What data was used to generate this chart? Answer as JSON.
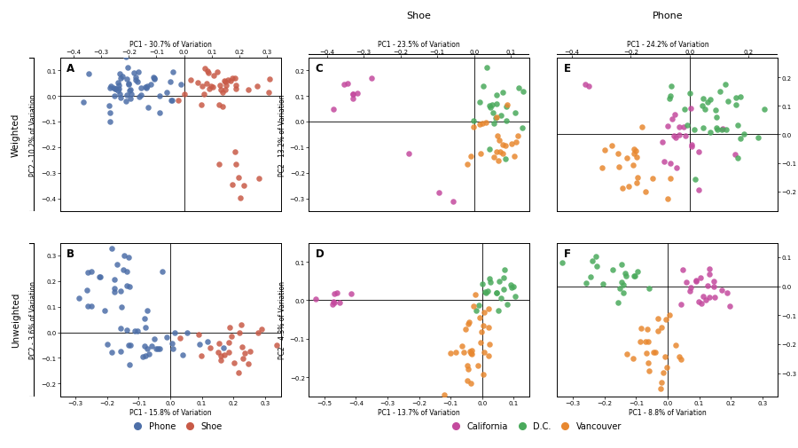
{
  "fig_width": 9.0,
  "fig_height": 5.06,
  "panel_labels": [
    "A",
    "B",
    "C",
    "D",
    "E",
    "F"
  ],
  "col_headers": [
    "Shoe",
    "Phone"
  ],
  "row_labels": [
    "Weighted",
    "Unweighted"
  ],
  "panels": {
    "A": {
      "pc1_label": "PC1 - 30.7% of Variation",
      "pc2_label": "PC2 - 10.2% of Variation",
      "xlim": [
        -0.45,
        0.35
      ],
      "ylim": [
        -0.45,
        0.15
      ],
      "xticks": [
        -0.4,
        -0.3,
        -0.2,
        -0.1,
        0,
        0.1,
        0.2,
        0.3
      ],
      "yticks": [
        -0.4,
        -0.3,
        -0.2,
        -0.1,
        0,
        0.1
      ],
      "top_axis": true,
      "right_axis": false,
      "left_axis": true,
      "bottom_axis": false
    },
    "B": {
      "pc1_label": "PC1 - 15.8% of Variation",
      "pc2_label": "PC2 - 3.6% of Variation",
      "xlim": [
        -0.35,
        0.35
      ],
      "ylim": [
        -0.25,
        0.35
      ],
      "xticks": [
        -0.3,
        -0.2,
        -0.1,
        0,
        0.1,
        0.2,
        0.3
      ],
      "yticks": [
        -0.2,
        -0.1,
        0,
        0.1,
        0.2,
        0.3
      ],
      "top_axis": false,
      "right_axis": false,
      "left_axis": true,
      "bottom_axis": true
    },
    "C": {
      "pc1_label": "PC1 - 23.5% of Variation",
      "pc2_label": "PC2 - 13.2% of Variation",
      "xlim": [
        -0.45,
        0.15
      ],
      "ylim": [
        -0.35,
        0.25
      ],
      "xticks": [
        -0.4,
        -0.3,
        -0.2,
        -0.1,
        0,
        0.1
      ],
      "yticks": [
        -0.3,
        -0.2,
        -0.1,
        0,
        0.1,
        0.2
      ],
      "top_axis": true,
      "right_axis": false,
      "left_axis": true,
      "bottom_axis": false
    },
    "D": {
      "pc1_label": "PC1 - 13.7% of Variation",
      "pc2_label": "PC2 - 4.3% of Variation",
      "xlim": [
        -0.55,
        0.15
      ],
      "ylim": [
        -0.25,
        0.15
      ],
      "xticks": [
        -0.5,
        -0.4,
        -0.3,
        -0.2,
        -0.1,
        0,
        0.1
      ],
      "yticks": [
        -0.2,
        -0.1,
        0,
        0.1
      ],
      "top_axis": false,
      "right_axis": false,
      "left_axis": true,
      "bottom_axis": true
    },
    "E": {
      "pc1_label": "PC1 - 24.2% of Variation",
      "pc2_label": "PC2 - 11.6% of Variation",
      "xlim": [
        -0.45,
        0.3
      ],
      "ylim": [
        -0.27,
        0.27
      ],
      "xticks": [
        -0.4,
        -0.2,
        0,
        0.2
      ],
      "yticks": [
        -0.2,
        -0.1,
        0,
        0.1,
        0.2
      ],
      "top_axis": true,
      "right_axis": true,
      "left_axis": false,
      "bottom_axis": false
    },
    "F": {
      "pc1_label": "PC1 - 8.8% of Variation",
      "pc2_label": "PC2 - 6.2% of Variation",
      "xlim": [
        -0.35,
        0.35
      ],
      "ylim": [
        -0.38,
        0.15
      ],
      "xticks": [
        -0.3,
        -0.2,
        -0.1,
        0,
        0.1,
        0.2,
        0.3
      ],
      "yticks": [
        -0.3,
        -0.2,
        -0.1,
        0,
        0.1
      ],
      "top_axis": false,
      "right_axis": true,
      "left_axis": false,
      "bottom_axis": true
    }
  },
  "color_phone": "#4d6fa8",
  "color_shoe": "#c85a47",
  "color_california": "#c44a9e",
  "color_dc": "#4aaa5c",
  "color_vancouver": "#e88830",
  "marker_size": 22,
  "alpha": 0.85
}
